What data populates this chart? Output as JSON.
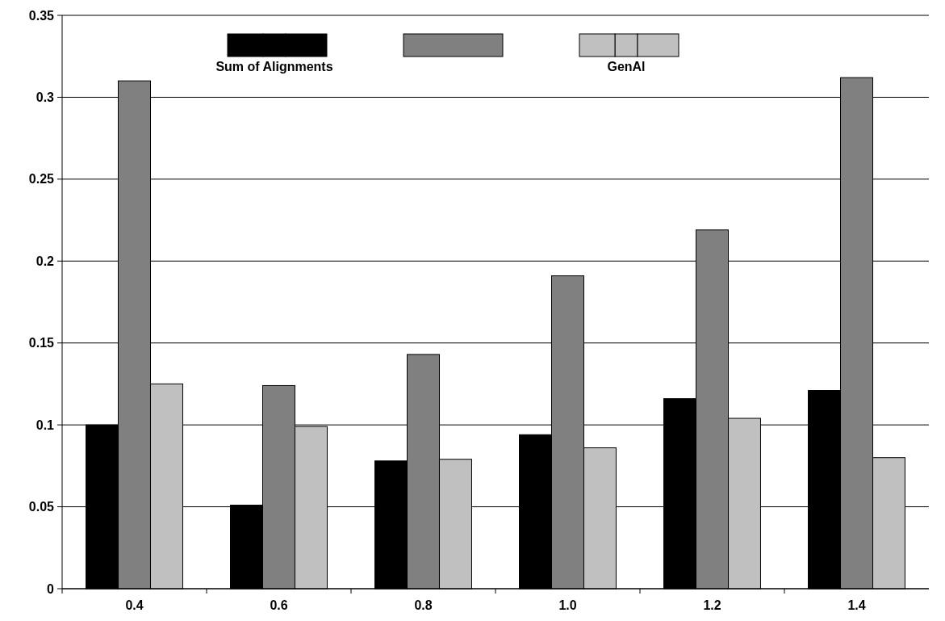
{
  "chart_data": {
    "type": "bar",
    "categories": [
      "0.4",
      "0.6",
      "0.8",
      "1.0",
      "1.2",
      "1.4"
    ],
    "series": [
      {
        "name": "Sum of Alignments",
        "color": "#000000",
        "values": [
          0.1,
          0.051,
          0.078,
          0.094,
          0.116,
          0.121
        ]
      },
      {
        "color": "#808080",
        "values": [
          0.31,
          0.124,
          0.143,
          0.191,
          0.219,
          0.312
        ]
      },
      {
        "name": "GenAl",
        "color": "#c0c0c0",
        "values": [
          0.125,
          0.099,
          0.079,
          0.086,
          0.104,
          0.08
        ]
      }
    ],
    "ylim": [
      0,
      0.35
    ],
    "yticks": [
      0,
      0.05,
      0.1,
      0.15,
      0.2,
      0.25,
      0.3,
      0.35
    ],
    "grid": "y",
    "legend": "top"
  }
}
